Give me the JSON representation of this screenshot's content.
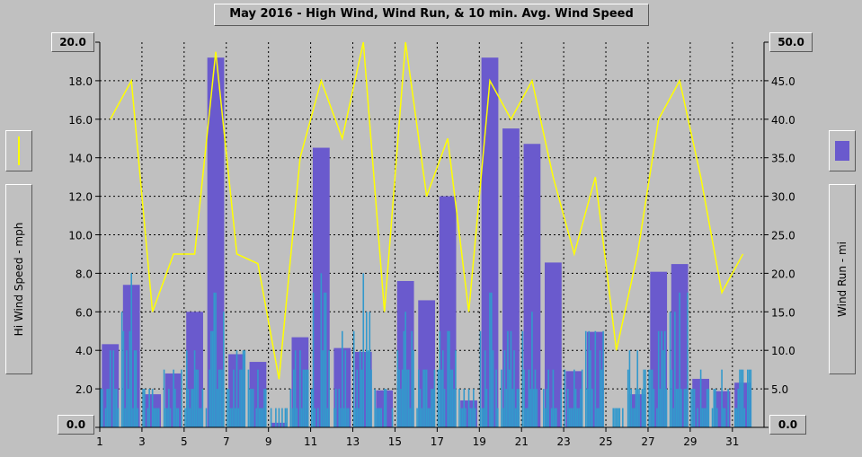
{
  "chart_data": {
    "type": "bar",
    "title": "May 2016 -  High Wind, Wind Run, & 10 min. Avg. Wind Speed",
    "y_left_label": "Hi Wind Speed - mph",
    "y_right_label": "Wind Run - mi",
    "y_left_range": [
      0,
      20
    ],
    "y_right_range": [
      0,
      50
    ],
    "y_left_ticks": [
      "0.0",
      "2.0",
      "4.0",
      "6.0",
      "8.0",
      "10.0",
      "12.0",
      "14.0",
      "16.0",
      "18.0",
      "20.0"
    ],
    "y_right_ticks": [
      "0.0",
      "5.0",
      "10.0",
      "15.0",
      "20.0",
      "25.0",
      "30.0",
      "35.0",
      "40.0",
      "45.0",
      "50.0"
    ],
    "x_ticks": [
      "1",
      "3",
      "5",
      "7",
      "9",
      "11",
      "13",
      "15",
      "17",
      "19",
      "21",
      "23",
      "25",
      "27",
      "29",
      "31"
    ],
    "grid": true,
    "days": [
      1,
      2,
      3,
      4,
      5,
      6,
      7,
      8,
      9,
      10,
      11,
      12,
      13,
      14,
      15,
      16,
      17,
      18,
      19,
      20,
      21,
      22,
      23,
      24,
      25,
      26,
      27,
      28,
      29,
      30,
      31
    ],
    "wind_run_mi": [
      10.8,
      18.5,
      4.3,
      7.0,
      15.0,
      48.0,
      9.5,
      8.5,
      0.6,
      11.7,
      36.3,
      10.3,
      9.8,
      4.8,
      19.0,
      16.5,
      30.0,
      3.5,
      48.0,
      38.8,
      36.8,
      21.4,
      7.3,
      12.4,
      0,
      4.3,
      20.2,
      21.2,
      6.3,
      4.7,
      5.8
    ],
    "high_wind_mph": [
      16.0,
      18.0,
      6.0,
      9.0,
      9.0,
      19.5,
      9.0,
      8.5,
      2.5,
      14.0,
      18.0,
      15.0,
      20.0,
      6.0,
      20.0,
      12.0,
      15.0,
      6.0,
      18.0,
      16.0,
      18.0,
      13.0,
      9.0,
      13.0,
      4.0,
      9.0,
      16.0,
      18.0,
      13.0,
      7.0,
      9.0
    ],
    "high_wind_x": [
      1.5,
      2.5,
      3.5,
      4.5,
      5.5,
      6.5,
      7.5,
      8.5,
      9.5,
      10.5,
      11.5,
      12.5,
      13.5,
      14.5,
      15.5,
      16.5,
      17.5,
      18.5,
      19.5,
      20.5,
      21.5,
      22.5,
      23.5,
      24.5,
      25.5,
      26.5,
      27.5,
      28.5,
      29.5,
      30.5,
      31.5
    ],
    "avg_wind_daily_max_mph": [
      4,
      8,
      2,
      3,
      4,
      7,
      4,
      3,
      1,
      4,
      8,
      5,
      8,
      2,
      6,
      3,
      5,
      2,
      7,
      5,
      6,
      3,
      3,
      5,
      1,
      4,
      5,
      7,
      3,
      3,
      3
    ],
    "series": [
      {
        "name": "Hi Wind Speed",
        "color": "#ffff00",
        "axis": "left"
      },
      {
        "name": "Wind Run",
        "color": "#6a5acd",
        "axis": "right"
      },
      {
        "name": "10 min. Avg. Wind Speed",
        "color": "#3399cc",
        "axis": "left"
      }
    ]
  }
}
